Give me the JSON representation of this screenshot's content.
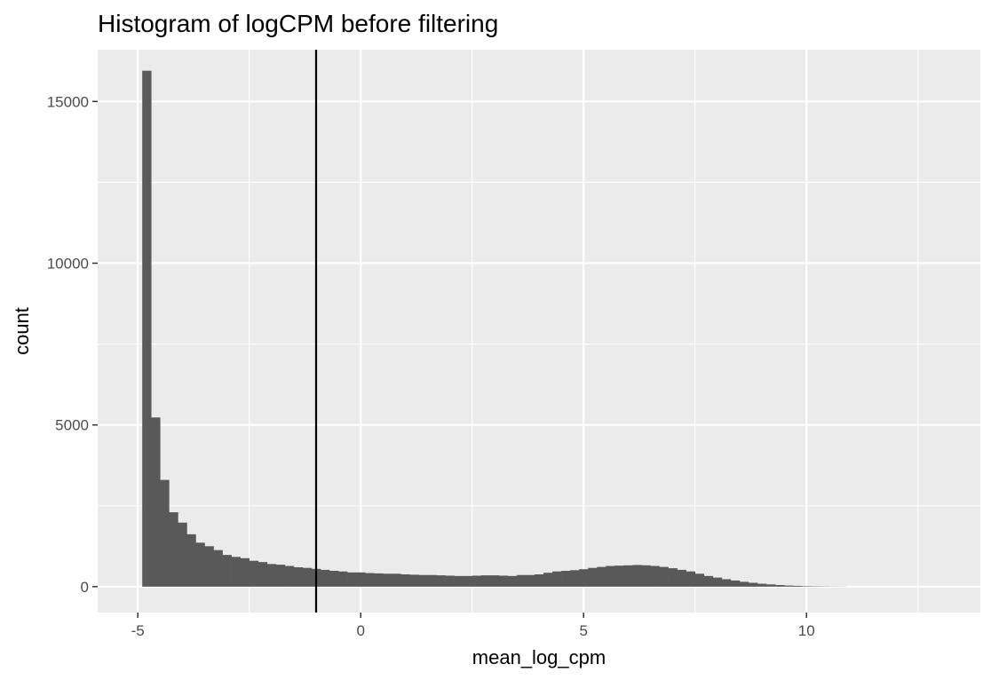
{
  "chart_data": {
    "type": "bar",
    "title": "Histogram of logCPM before filtering",
    "xlabel": "mean_log_cpm",
    "ylabel": "count",
    "xlim": [
      -5.9,
      13.9
    ],
    "ylim": [
      -800,
      16600
    ],
    "x_ticks": [
      -5,
      0,
      5,
      10
    ],
    "x_tick_labels": [
      "-5",
      "0",
      "5",
      "10"
    ],
    "y_ticks": [
      0,
      5000,
      10000,
      15000
    ],
    "y_tick_labels": [
      "0",
      "5000",
      "10000",
      "15000"
    ],
    "bin_width": 0.2,
    "bin_start": -4.9,
    "counts": [
      15950,
      5230,
      3300,
      2300,
      1980,
      1620,
      1360,
      1250,
      1130,
      980,
      920,
      880,
      800,
      760,
      700,
      680,
      640,
      600,
      580,
      550,
      520,
      490,
      470,
      440,
      440,
      420,
      410,
      400,
      400,
      380,
      370,
      360,
      360,
      350,
      340,
      330,
      330,
      340,
      350,
      350,
      340,
      330,
      360,
      360,
      380,
      430,
      470,
      490,
      510,
      540,
      580,
      610,
      640,
      650,
      660,
      670,
      660,
      640,
      610,
      570,
      520,
      470,
      400,
      330,
      280,
      230,
      190,
      150,
      120,
      90,
      70,
      50,
      35,
      25,
      15,
      10,
      8,
      5,
      3
    ],
    "vline_x": -1,
    "background": "#ebebeb",
    "grid": true,
    "grid_color": "#ffffff",
    "bar_color": "#595959",
    "vline_color": "#000000"
  }
}
